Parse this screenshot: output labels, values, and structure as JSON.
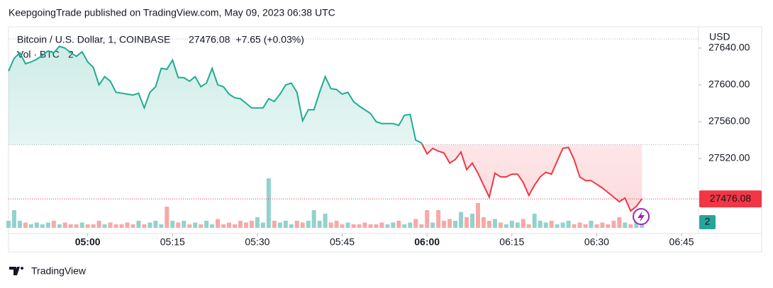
{
  "chart_data": {
    "type": "baseline",
    "publisher_note": "KeepgoingTrade published on TradingView.com, May 09, 2023 06:38 UTC",
    "title": "Bitcoin / U.S. Dollar, 1, COINBASE",
    "change": "+7.65 (+0.03%)",
    "currency": "USD",
    "brand": "TradingView",
    "baseline": 27535,
    "color_above": "#22ab94",
    "color_below": "#f23645",
    "x": [
      "04:46",
      "04:47",
      "04:48",
      "04:49",
      "04:50",
      "04:51",
      "04:52",
      "04:53",
      "04:54",
      "04:55",
      "04:56",
      "04:57",
      "04:58",
      "04:59",
      "05:00",
      "05:01",
      "05:02",
      "05:03",
      "05:04",
      "05:05",
      "05:06",
      "05:07",
      "05:08",
      "05:09",
      "05:10",
      "05:11",
      "05:12",
      "05:13",
      "05:14",
      "05:15",
      "05:16",
      "05:17",
      "05:18",
      "05:19",
      "05:20",
      "05:21",
      "05:22",
      "05:23",
      "05:24",
      "05:25",
      "05:26",
      "05:27",
      "05:28",
      "05:29",
      "05:30",
      "05:31",
      "05:32",
      "05:33",
      "05:34",
      "05:35",
      "05:36",
      "05:37",
      "05:38",
      "05:39",
      "05:40",
      "05:41",
      "05:42",
      "05:43",
      "05:44",
      "05:45",
      "05:46",
      "05:47",
      "05:48",
      "05:49",
      "05:50",
      "05:51",
      "05:52",
      "05:53",
      "05:54",
      "05:55",
      "05:56",
      "05:57",
      "05:58",
      "05:59",
      "06:00",
      "06:01",
      "06:02",
      "06:03",
      "06:04",
      "06:05",
      "06:06",
      "06:07",
      "06:08",
      "06:09",
      "06:10",
      "06:11",
      "06:12",
      "06:13",
      "06:14",
      "06:15",
      "06:16",
      "06:17",
      "06:18",
      "06:19",
      "06:20",
      "06:21",
      "06:22",
      "06:23",
      "06:24",
      "06:25",
      "06:26",
      "06:27",
      "06:28",
      "06:29",
      "06:30",
      "06:31",
      "06:32",
      "06:33",
      "06:34",
      "06:35",
      "06:36",
      "06:37",
      "06:38"
    ],
    "values": [
      27615,
      27629,
      27635,
      27623,
      27625,
      27628,
      27632,
      27637,
      27635,
      27642,
      27640,
      27635,
      27631,
      27636,
      27625,
      27619,
      27600,
      27609,
      27604,
      27592,
      27591,
      27590,
      27589,
      27591,
      27575,
      27592,
      27598,
      27618,
      27617,
      27627,
      27608,
      27608,
      27604,
      27609,
      27598,
      27602,
      27618,
      27600,
      27598,
      27590,
      27586,
      27585,
      27580,
      27575,
      27575,
      27575,
      27585,
      27582,
      27590,
      27600,
      27602,
      27592,
      27561,
      27573,
      27573,
      27592,
      27609,
      27596,
      27595,
      27590,
      27592,
      27582,
      27577,
      27573,
      27569,
      27560,
      27558,
      27558,
      27558,
      27556,
      27567,
      27568,
      27540,
      27537,
      27525,
      27531,
      27528,
      27526,
      27515,
      27519,
      27527,
      27508,
      27515,
      27504,
      27491,
      27478,
      27504,
      27500,
      27500,
      27503,
      27503,
      27494,
      27480,
      27491,
      27500,
      27505,
      27503,
      27517,
      27531,
      27532,
      27519,
      27500,
      27496,
      27496,
      27492,
      27488,
      27483,
      27478,
      27473,
      27477,
      27463,
      27468,
      27476.08
    ],
    "volume": {
      "name": "Vol · BTC",
      "color_up": "#92d2cc",
      "color_down": "#f7a9a7",
      "values": [
        2,
        5,
        2,
        1.5,
        1,
        1.5,
        1,
        1.5,
        2,
        1,
        1.5,
        1,
        1,
        1.5,
        1,
        1,
        2,
        1,
        1.5,
        1,
        1,
        1.5,
        1,
        2,
        1,
        1.5,
        2,
        1,
        6,
        2,
        1.5,
        2,
        1,
        1.5,
        1,
        2,
        1,
        2.5,
        1,
        1.5,
        1,
        2,
        1.5,
        2,
        3,
        1.5,
        14,
        2,
        1.5,
        2,
        1,
        2,
        1.5,
        2,
        5,
        2,
        4,
        1.5,
        2,
        1,
        1.5,
        1,
        1,
        1.5,
        1,
        1,
        1.5,
        1,
        1.5,
        2,
        1,
        1.5,
        2.5,
        1,
        5,
        1.5,
        5,
        2,
        2.5,
        2,
        4.5,
        3,
        4,
        7,
        3,
        2,
        2.5,
        1.5,
        1,
        2,
        1.5,
        2.5,
        1,
        4,
        2,
        1.5,
        2,
        1,
        1.5,
        2,
        1,
        1.5,
        1,
        2,
        1,
        1.5,
        1,
        2,
        3,
        1.5,
        1,
        2,
        2
      ]
    },
    "xlim": [
      "04:46",
      "06:48"
    ],
    "xticks": [
      "05:00",
      "05:15",
      "05:30",
      "05:45",
      "06:00",
      "06:15",
      "06:30",
      "06:45"
    ],
    "ylim": [
      27438.5,
      27661.5
    ],
    "yticks": [
      {
        "value": 27520,
        "label": "27520.00"
      },
      {
        "value": 27560,
        "label": "27560.00"
      },
      {
        "value": 27600,
        "label": "27600.00"
      },
      {
        "value": 27640,
        "label": "27640.00"
      }
    ]
  }
}
